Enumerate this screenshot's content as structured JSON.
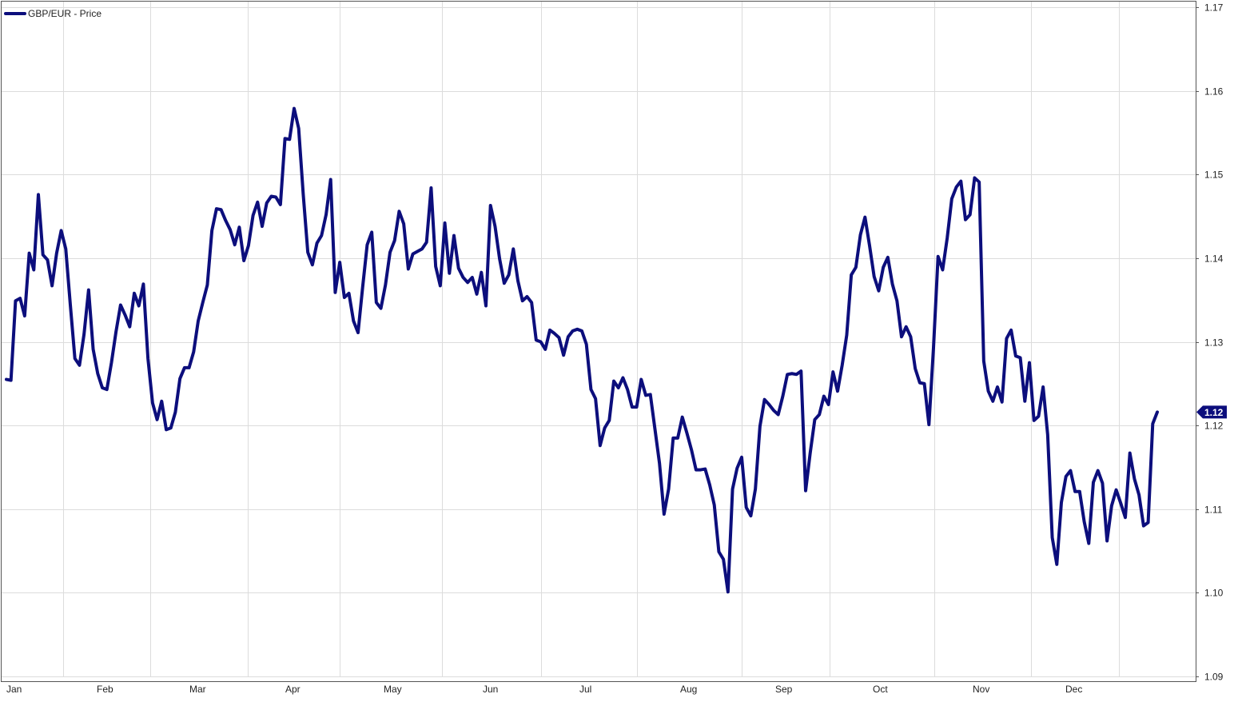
{
  "colors": {
    "line": "#0c0e7c",
    "grid": "#dcdcdc",
    "border": "#555555",
    "background": "#ffffff"
  },
  "legend": {
    "label": "GBP/EUR - Price",
    "position": "top-left"
  },
  "chart_data": {
    "type": "line",
    "grid": true,
    "ylim": [
      1.09,
      1.17
    ],
    "y_ticks": [
      "1.09",
      "1.10",
      "1.11",
      "1.12",
      "1.13",
      "1.14",
      "1.15",
      "1.16",
      "1.17"
    ],
    "y_axis_side": "right",
    "x_tick_labels": [
      "Jan",
      "Feb",
      "Mar",
      "Apr",
      "May",
      "Jun",
      "Jul",
      "Aug",
      "Sep",
      "Oct",
      "Nov",
      "Dec"
    ],
    "last_value_label": "1.12",
    "series": [
      {
        "name": "GBP/EUR - Price",
        "values": [
          1.1255,
          1.1254,
          1.1349,
          1.1352,
          1.1331,
          1.1406,
          1.1386,
          1.1476,
          1.1404,
          1.1398,
          1.1367,
          1.1406,
          1.1433,
          1.1411,
          1.1344,
          1.128,
          1.1272,
          1.1309,
          1.1362,
          1.1291,
          1.1262,
          1.1245,
          1.1243,
          1.1275,
          1.1312,
          1.1344,
          1.1332,
          1.1318,
          1.1358,
          1.1343,
          1.1369,
          1.128,
          1.1227,
          1.1207,
          1.1229,
          1.1195,
          1.1197,
          1.1216,
          1.1256,
          1.1269,
          1.1269,
          1.1288,
          1.1325,
          1.1347,
          1.1368,
          1.1433,
          1.1459,
          1.1458,
          1.1445,
          1.1434,
          1.1416,
          1.1437,
          1.1397,
          1.1415,
          1.1451,
          1.1467,
          1.1438,
          1.1466,
          1.1474,
          1.1473,
          1.1464,
          1.1543,
          1.1542,
          1.1579,
          1.1555,
          1.1476,
          1.1407,
          1.1392,
          1.1418,
          1.1427,
          1.1452,
          1.1494,
          1.1359,
          1.1395,
          1.1353,
          1.1358,
          1.1325,
          1.1311,
          1.1365,
          1.1416,
          1.1431,
          1.1347,
          1.134,
          1.1368,
          1.1407,
          1.1421,
          1.1456,
          1.1441,
          1.1387,
          1.1405,
          1.1408,
          1.1411,
          1.1419,
          1.1484,
          1.139,
          1.1367,
          1.1442,
          1.1382,
          1.1427,
          1.1388,
          1.1377,
          1.1371,
          1.1377,
          1.1357,
          1.1383,
          1.1343,
          1.1463,
          1.1438,
          1.1399,
          1.137,
          1.138,
          1.1411,
          1.1373,
          1.1349,
          1.1354,
          1.1347,
          1.1302,
          1.13,
          1.1291,
          1.1314,
          1.131,
          1.1305,
          1.1284,
          1.1306,
          1.1313,
          1.1315,
          1.1313,
          1.1297,
          1.1243,
          1.1232,
          1.1176,
          1.1197,
          1.1206,
          1.1253,
          1.1245,
          1.1257,
          1.1243,
          1.1222,
          1.1222,
          1.1255,
          1.1236,
          1.1237,
          1.1196,
          1.1155,
          1.1094,
          1.1124,
          1.1185,
          1.1185,
          1.121,
          1.1191,
          1.1171,
          1.1147,
          1.1147,
          1.1148,
          1.1129,
          1.1105,
          1.1049,
          1.104,
          1.1001,
          1.1124,
          1.1149,
          1.1162,
          1.1102,
          1.1092,
          1.1124,
          1.1199,
          1.1231,
          1.1225,
          1.1218,
          1.1213,
          1.1235,
          1.1261,
          1.1262,
          1.1261,
          1.1265,
          1.1122,
          1.1167,
          1.1207,
          1.1213,
          1.1235,
          1.1225,
          1.1264,
          1.1241,
          1.1272,
          1.1308,
          1.138,
          1.1389,
          1.1428,
          1.1449,
          1.1415,
          1.1378,
          1.1361,
          1.1389,
          1.1401,
          1.1369,
          1.1349,
          1.1306,
          1.1318,
          1.1306,
          1.1268,
          1.1251,
          1.125,
          1.1201,
          1.1293,
          1.1402,
          1.1386,
          1.1424,
          1.1471,
          1.1485,
          1.1492,
          1.1446,
          1.1452,
          1.1496,
          1.1491,
          1.1277,
          1.1241,
          1.1229,
          1.1246,
          1.1228,
          1.1304,
          1.1314,
          1.1283,
          1.1281,
          1.1229,
          1.1275,
          1.1206,
          1.1211,
          1.1246,
          1.1189,
          1.1066,
          1.1034,
          1.1108,
          1.1139,
          1.1146,
          1.1121,
          1.1121,
          1.1085,
          1.1059,
          1.1132,
          1.1146,
          1.1131,
          1.1062,
          1.1104,
          1.1123,
          1.1107,
          1.109,
          1.1167,
          1.1136,
          1.1117,
          1.108,
          1.1084,
          1.1202,
          1.1216
        ]
      }
    ]
  }
}
